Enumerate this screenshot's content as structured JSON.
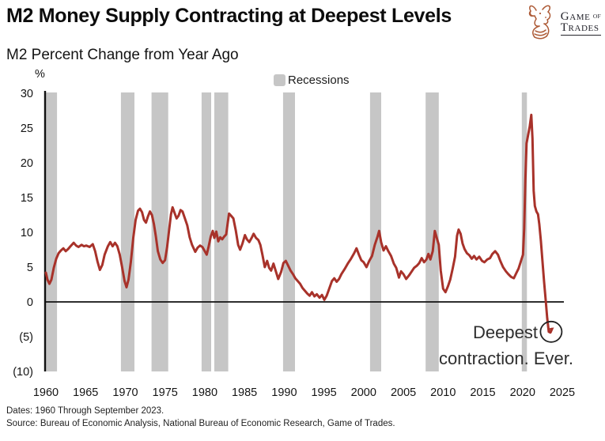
{
  "header": {
    "title": "M2 Money Supply Contracting at Deepest Levels",
    "logo": {
      "word1": "Game",
      "word2": "of",
      "word3": "Trades"
    }
  },
  "subtitle": "M2 Percent Change from Year Ago",
  "footer": {
    "dates": "Dates: 1960 Through September 2023.",
    "source": "Source: Bureau of Economic Analysis, National Bureau of Economic Research, Game of Trades."
  },
  "chart_data": {
    "type": "line",
    "title": "M2 Percent Change from Year Ago",
    "unit_label": "%",
    "legend": [
      {
        "label": "Recessions",
        "color": "#c6c6c6"
      }
    ],
    "legend_position": "top-center",
    "grid": false,
    "xlim": [
      1960,
      2026
    ],
    "ylim": [
      -10,
      30
    ],
    "x_ticks": [
      1960,
      1965,
      1970,
      1975,
      1980,
      1985,
      1990,
      1995,
      2000,
      2005,
      2010,
      2015,
      2020,
      2025
    ],
    "x_tick_labels": [
      "1960",
      "1965",
      "1970",
      "1975",
      "1980",
      "1985",
      "1990",
      "1995",
      "2000",
      "2005",
      "2010",
      "2015",
      "2020",
      "2025"
    ],
    "y_ticks": [
      30,
      25,
      20,
      15,
      10,
      5,
      0,
      -5,
      -10
    ],
    "y_tick_labels": [
      "30",
      "25",
      "20",
      "15",
      "10",
      "5",
      "0",
      "(5)",
      "(10)"
    ],
    "line_color": "#a8322a",
    "recession_color": "#c6c6c6",
    "recessions": [
      [
        1960.0,
        1961.4
      ],
      [
        1969.45,
        1971.15
      ],
      [
        1973.3,
        1975.4
      ],
      [
        1979.6,
        1980.8
      ],
      [
        1981.2,
        1982.95
      ],
      [
        1989.85,
        1991.35
      ],
      [
        2000.8,
        2002.2
      ],
      [
        2007.8,
        2009.45
      ],
      [
        2019.9,
        2020.55
      ]
    ],
    "annotation": {
      "line1": "Deepest",
      "line2": "contraction. Ever.",
      "circle_at": [
        2023.6,
        -4.3
      ]
    },
    "series": [
      {
        "name": "M2 percent change from year ago",
        "points": [
          [
            1960.0,
            4.2
          ],
          [
            1960.2,
            3.2
          ],
          [
            1960.45,
            2.6
          ],
          [
            1960.7,
            3.2
          ],
          [
            1961.0,
            4.9
          ],
          [
            1961.3,
            6.2
          ],
          [
            1961.6,
            7.0
          ],
          [
            1961.9,
            7.4
          ],
          [
            1962.2,
            7.7
          ],
          [
            1962.5,
            7.3
          ],
          [
            1962.8,
            7.6
          ],
          [
            1963.1,
            8.0
          ],
          [
            1963.5,
            8.5
          ],
          [
            1963.8,
            8.1
          ],
          [
            1964.1,
            7.9
          ],
          [
            1964.5,
            8.2
          ],
          [
            1964.8,
            8.0
          ],
          [
            1965.1,
            8.1
          ],
          [
            1965.5,
            7.9
          ],
          [
            1965.9,
            8.3
          ],
          [
            1966.2,
            7.3
          ],
          [
            1966.5,
            5.8
          ],
          [
            1966.8,
            4.6
          ],
          [
            1967.1,
            5.3
          ],
          [
            1967.4,
            6.8
          ],
          [
            1967.8,
            8.0
          ],
          [
            1968.1,
            8.6
          ],
          [
            1968.4,
            8.0
          ],
          [
            1968.7,
            8.5
          ],
          [
            1969.0,
            8.0
          ],
          [
            1969.3,
            6.8
          ],
          [
            1969.6,
            5.0
          ],
          [
            1969.9,
            3.0
          ],
          [
            1970.15,
            2.1
          ],
          [
            1970.4,
            3.2
          ],
          [
            1970.7,
            5.8
          ],
          [
            1971.0,
            9.2
          ],
          [
            1971.3,
            11.8
          ],
          [
            1971.6,
            13.1
          ],
          [
            1971.85,
            13.4
          ],
          [
            1972.1,
            12.9
          ],
          [
            1972.35,
            11.8
          ],
          [
            1972.6,
            11.4
          ],
          [
            1972.85,
            12.3
          ],
          [
            1973.1,
            13.0
          ],
          [
            1973.35,
            12.5
          ],
          [
            1973.6,
            11.2
          ],
          [
            1973.85,
            9.4
          ],
          [
            1974.1,
            7.3
          ],
          [
            1974.4,
            6.1
          ],
          [
            1974.7,
            5.6
          ],
          [
            1975.0,
            6.0
          ],
          [
            1975.25,
            7.8
          ],
          [
            1975.5,
            10.2
          ],
          [
            1975.75,
            12.6
          ],
          [
            1975.95,
            13.6
          ],
          [
            1976.2,
            12.8
          ],
          [
            1976.45,
            12.0
          ],
          [
            1976.7,
            12.4
          ],
          [
            1976.95,
            13.2
          ],
          [
            1977.2,
            13.0
          ],
          [
            1977.5,
            12.0
          ],
          [
            1977.8,
            11.0
          ],
          [
            1978.1,
            9.3
          ],
          [
            1978.4,
            8.2
          ],
          [
            1978.8,
            7.2
          ],
          [
            1979.1,
            7.8
          ],
          [
            1979.4,
            8.1
          ],
          [
            1979.7,
            7.9
          ],
          [
            1980.0,
            7.3
          ],
          [
            1980.25,
            6.8
          ],
          [
            1980.5,
            8.0
          ],
          [
            1980.75,
            9.4
          ],
          [
            1981.0,
            10.2
          ],
          [
            1981.2,
            9.2
          ],
          [
            1981.45,
            10.1
          ],
          [
            1981.7,
            8.7
          ],
          [
            1981.95,
            9.3
          ],
          [
            1982.2,
            9.0
          ],
          [
            1982.45,
            9.4
          ],
          [
            1982.7,
            9.7
          ],
          [
            1982.9,
            11.5
          ],
          [
            1983.05,
            12.7
          ],
          [
            1983.3,
            12.4
          ],
          [
            1983.6,
            12.0
          ],
          [
            1983.9,
            10.3
          ],
          [
            1984.2,
            8.2
          ],
          [
            1984.45,
            7.5
          ],
          [
            1984.75,
            8.4
          ],
          [
            1985.05,
            9.6
          ],
          [
            1985.3,
            9.0
          ],
          [
            1985.6,
            8.6
          ],
          [
            1985.9,
            9.2
          ],
          [
            1986.15,
            9.8
          ],
          [
            1986.45,
            9.2
          ],
          [
            1986.75,
            8.9
          ],
          [
            1987.0,
            8.2
          ],
          [
            1987.25,
            6.8
          ],
          [
            1987.55,
            5.0
          ],
          [
            1987.85,
            5.9
          ],
          [
            1988.1,
            4.9
          ],
          [
            1988.35,
            4.5
          ],
          [
            1988.65,
            5.5
          ],
          [
            1988.95,
            4.4
          ],
          [
            1989.25,
            3.3
          ],
          [
            1989.6,
            4.3
          ],
          [
            1989.9,
            5.6
          ],
          [
            1990.2,
            5.9
          ],
          [
            1990.5,
            5.2
          ],
          [
            1990.8,
            4.5
          ],
          [
            1991.1,
            4.0
          ],
          [
            1991.4,
            3.4
          ],
          [
            1991.7,
            3.0
          ],
          [
            1992.0,
            2.6
          ],
          [
            1992.3,
            2.0
          ],
          [
            1992.6,
            1.6
          ],
          [
            1992.9,
            1.2
          ],
          [
            1993.2,
            0.9
          ],
          [
            1993.5,
            1.4
          ],
          [
            1993.8,
            0.8
          ],
          [
            1994.1,
            1.1
          ],
          [
            1994.45,
            0.6
          ],
          [
            1994.75,
            1.0
          ],
          [
            1995.05,
            0.3
          ],
          [
            1995.35,
            0.9
          ],
          [
            1995.7,
            2.0
          ],
          [
            1996.0,
            3.0
          ],
          [
            1996.3,
            3.4
          ],
          [
            1996.6,
            2.9
          ],
          [
            1996.9,
            3.3
          ],
          [
            1997.2,
            4.0
          ],
          [
            1997.6,
            4.7
          ],
          [
            1998.0,
            5.5
          ],
          [
            1998.4,
            6.2
          ],
          [
            1998.8,
            7.0
          ],
          [
            1999.1,
            7.7
          ],
          [
            1999.4,
            6.8
          ],
          [
            1999.7,
            6.0
          ],
          [
            2000.0,
            5.7
          ],
          [
            2000.35,
            5.0
          ],
          [
            2000.7,
            5.9
          ],
          [
            2001.05,
            6.6
          ],
          [
            2001.4,
            8.2
          ],
          [
            2001.75,
            9.4
          ],
          [
            2001.95,
            10.2
          ],
          [
            2002.2,
            8.6
          ],
          [
            2002.5,
            7.4
          ],
          [
            2002.8,
            8.0
          ],
          [
            2003.1,
            7.3
          ],
          [
            2003.45,
            6.6
          ],
          [
            2003.8,
            5.5
          ],
          [
            2004.1,
            4.9
          ],
          [
            2004.45,
            3.5
          ],
          [
            2004.7,
            4.4
          ],
          [
            2005.0,
            4.0
          ],
          [
            2005.35,
            3.3
          ],
          [
            2005.7,
            3.8
          ],
          [
            2006.0,
            4.3
          ],
          [
            2006.35,
            4.9
          ],
          [
            2006.7,
            5.2
          ],
          [
            2007.0,
            5.6
          ],
          [
            2007.3,
            6.3
          ],
          [
            2007.6,
            5.7
          ],
          [
            2007.9,
            6.1
          ],
          [
            2008.15,
            6.9
          ],
          [
            2008.4,
            6.1
          ],
          [
            2008.7,
            7.3
          ],
          [
            2008.95,
            10.2
          ],
          [
            2009.2,
            9.2
          ],
          [
            2009.45,
            8.2
          ],
          [
            2009.7,
            4.5
          ],
          [
            2010.0,
            1.9
          ],
          [
            2010.3,
            1.4
          ],
          [
            2010.6,
            2.2
          ],
          [
            2010.9,
            3.2
          ],
          [
            2011.2,
            4.8
          ],
          [
            2011.5,
            6.5
          ],
          [
            2011.75,
            9.5
          ],
          [
            2011.95,
            10.4
          ],
          [
            2012.2,
            9.8
          ],
          [
            2012.45,
            8.4
          ],
          [
            2012.7,
            7.6
          ],
          [
            2013.0,
            7.0
          ],
          [
            2013.3,
            6.7
          ],
          [
            2013.6,
            6.2
          ],
          [
            2013.9,
            6.6
          ],
          [
            2014.2,
            6.1
          ],
          [
            2014.55,
            6.5
          ],
          [
            2014.9,
            5.9
          ],
          [
            2015.2,
            5.7
          ],
          [
            2015.55,
            6.1
          ],
          [
            2015.9,
            6.3
          ],
          [
            2016.2,
            6.9
          ],
          [
            2016.55,
            7.3
          ],
          [
            2016.9,
            6.8
          ],
          [
            2017.2,
            5.9
          ],
          [
            2017.55,
            5.0
          ],
          [
            2017.9,
            4.4
          ],
          [
            2018.2,
            4.0
          ],
          [
            2018.55,
            3.6
          ],
          [
            2018.9,
            3.4
          ],
          [
            2019.2,
            4.1
          ],
          [
            2019.5,
            4.8
          ],
          [
            2019.8,
            5.9
          ],
          [
            2020.05,
            6.8
          ],
          [
            2020.2,
            10.5
          ],
          [
            2020.35,
            17.5
          ],
          [
            2020.5,
            22.8
          ],
          [
            2020.7,
            24.0
          ],
          [
            2020.9,
            25.2
          ],
          [
            2021.1,
            26.9
          ],
          [
            2021.25,
            23.5
          ],
          [
            2021.4,
            16.0
          ],
          [
            2021.55,
            13.8
          ],
          [
            2021.75,
            13.0
          ],
          [
            2021.95,
            12.6
          ],
          [
            2022.1,
            11.2
          ],
          [
            2022.3,
            8.8
          ],
          [
            2022.5,
            5.9
          ],
          [
            2022.7,
            3.0
          ],
          [
            2022.9,
            0.4
          ],
          [
            2023.1,
            -2.3
          ],
          [
            2023.3,
            -4.3
          ],
          [
            2023.5,
            -4.4
          ],
          [
            2023.65,
            -3.9
          ]
        ]
      }
    ]
  }
}
